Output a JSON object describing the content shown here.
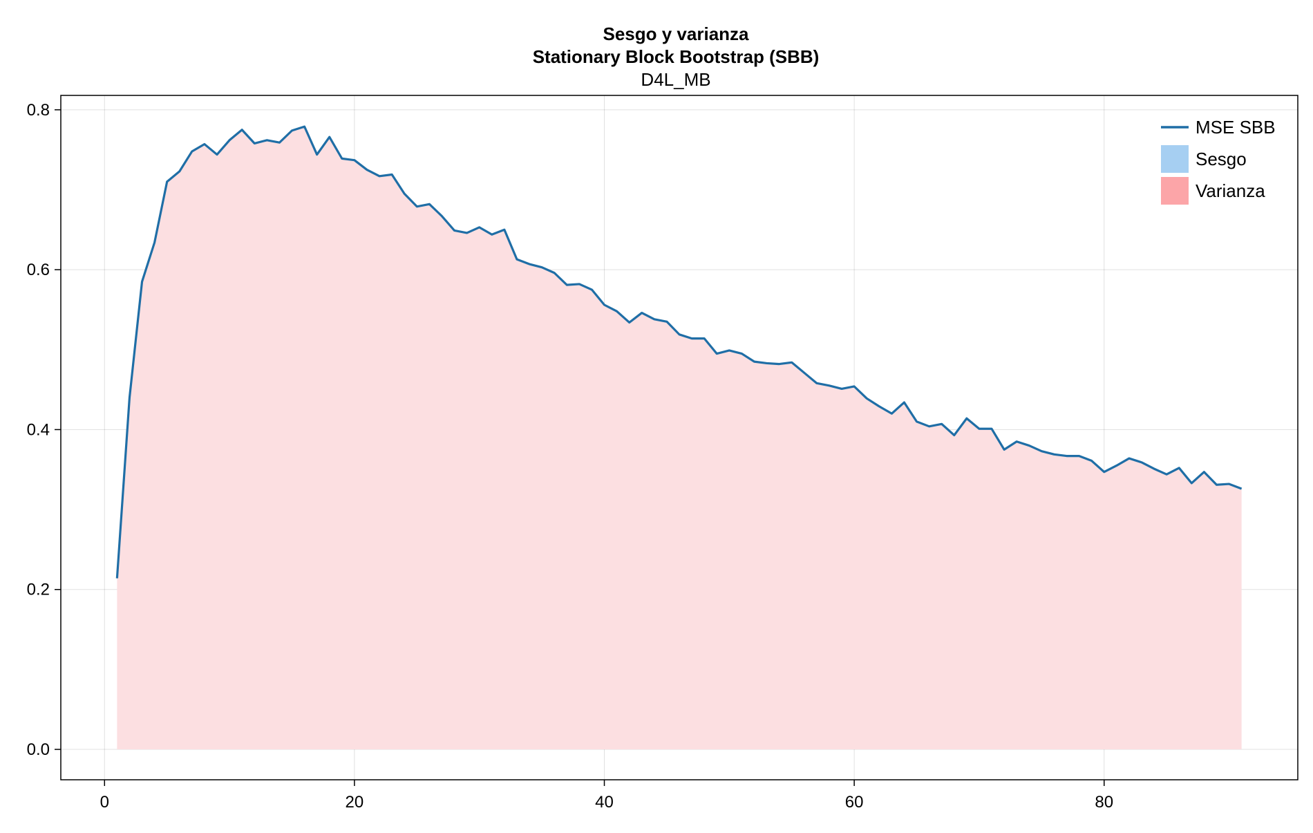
{
  "chart_data": {
    "type": "area",
    "title": "Sesgo y varianza",
    "subtitle": "Stationary Block Bootstrap (SBB)",
    "subtitle2": "D4L_MB",
    "xlabel": "",
    "ylabel": "",
    "xlim": [
      -3.5,
      95.5
    ],
    "ylim": [
      -0.038,
      0.818
    ],
    "xticks": [
      0,
      20,
      40,
      60,
      80
    ],
    "yticks": [
      0.0,
      0.2,
      0.4,
      0.6,
      0.8
    ],
    "xtick_labels": [
      "0",
      "20",
      "40",
      "60",
      "80"
    ],
    "ytick_labels": [
      "0.0",
      "0.2",
      "0.4",
      "0.6",
      "0.8"
    ],
    "grid": true,
    "legend_position": "top-right",
    "colors": {
      "mse": "#1f6ea6",
      "sesgo": "#a6cff2",
      "varianza": "#fca5a8",
      "varianza_fill": "#fcdfe1"
    },
    "legend": [
      {
        "label": "MSE SBB",
        "kind": "line",
        "color": "#1f6ea6"
      },
      {
        "label": "Sesgo",
        "kind": "patch",
        "color": "#a6cff2"
      },
      {
        "label": "Varianza",
        "kind": "patch",
        "color": "#fca5a8"
      }
    ],
    "series": [
      {
        "name": "MSE SBB",
        "x_start": 1,
        "values": [
          0.214,
          0.44,
          0.585,
          0.634,
          0.71,
          0.723,
          0.748,
          0.757,
          0.744,
          0.762,
          0.775,
          0.758,
          0.762,
          0.759,
          0.774,
          0.779,
          0.744,
          0.766,
          0.739,
          0.737,
          0.725,
          0.717,
          0.719,
          0.695,
          0.679,
          0.682,
          0.667,
          0.649,
          0.646,
          0.653,
          0.644,
          0.65,
          0.613,
          0.607,
          0.603,
          0.596,
          0.581,
          0.582,
          0.575,
          0.556,
          0.548,
          0.534,
          0.546,
          0.538,
          0.535,
          0.519,
          0.514,
          0.514,
          0.495,
          0.499,
          0.495,
          0.485,
          0.483,
          0.482,
          0.484,
          0.471,
          0.458,
          0.455,
          0.451,
          0.454,
          0.439,
          0.429,
          0.42,
          0.434,
          0.41,
          0.404,
          0.407,
          0.393,
          0.414,
          0.401,
          0.401,
          0.375,
          0.385,
          0.38,
          0.373,
          0.369,
          0.367,
          0.367,
          0.361,
          0.347,
          0.355,
          0.364,
          0.359,
          0.351,
          0.344,
          0.352,
          0.333,
          0.347,
          0.331,
          0.332,
          0.326
        ]
      },
      {
        "name": "Sesgo",
        "x_start": 1,
        "values": [
          0,
          0,
          0,
          0,
          0,
          0,
          0,
          0,
          0,
          0,
          0,
          0,
          0,
          0,
          0,
          0,
          0,
          0,
          0,
          0,
          0,
          0,
          0,
          0,
          0,
          0,
          0,
          0,
          0,
          0,
          0,
          0,
          0,
          0,
          0,
          0,
          0,
          0,
          0,
          0,
          0,
          0,
          0,
          0,
          0,
          0,
          0,
          0,
          0,
          0,
          0,
          0,
          0,
          0,
          0,
          0,
          0,
          0,
          0,
          0,
          0,
          0,
          0,
          0,
          0,
          0,
          0,
          0,
          0,
          0,
          0,
          0,
          0,
          0,
          0,
          0,
          0,
          0,
          0,
          0,
          0,
          0,
          0,
          0,
          0,
          0,
          0,
          0,
          0,
          0,
          0
        ]
      },
      {
        "name": "Varianza",
        "x_start": 1,
        "values": [
          0.214,
          0.44,
          0.585,
          0.634,
          0.71,
          0.723,
          0.748,
          0.757,
          0.744,
          0.762,
          0.775,
          0.758,
          0.762,
          0.759,
          0.774,
          0.779,
          0.744,
          0.766,
          0.739,
          0.737,
          0.725,
          0.717,
          0.719,
          0.695,
          0.679,
          0.682,
          0.667,
          0.649,
          0.646,
          0.653,
          0.644,
          0.65,
          0.613,
          0.607,
          0.603,
          0.596,
          0.581,
          0.582,
          0.575,
          0.556,
          0.548,
          0.534,
          0.546,
          0.538,
          0.535,
          0.519,
          0.514,
          0.514,
          0.495,
          0.499,
          0.495,
          0.485,
          0.483,
          0.482,
          0.484,
          0.471,
          0.458,
          0.455,
          0.451,
          0.454,
          0.439,
          0.429,
          0.42,
          0.434,
          0.41,
          0.404,
          0.407,
          0.393,
          0.414,
          0.401,
          0.401,
          0.375,
          0.385,
          0.38,
          0.373,
          0.369,
          0.367,
          0.367,
          0.361,
          0.347,
          0.355,
          0.364,
          0.359,
          0.351,
          0.344,
          0.352,
          0.333,
          0.347,
          0.331,
          0.332,
          0.326
        ]
      }
    ]
  }
}
